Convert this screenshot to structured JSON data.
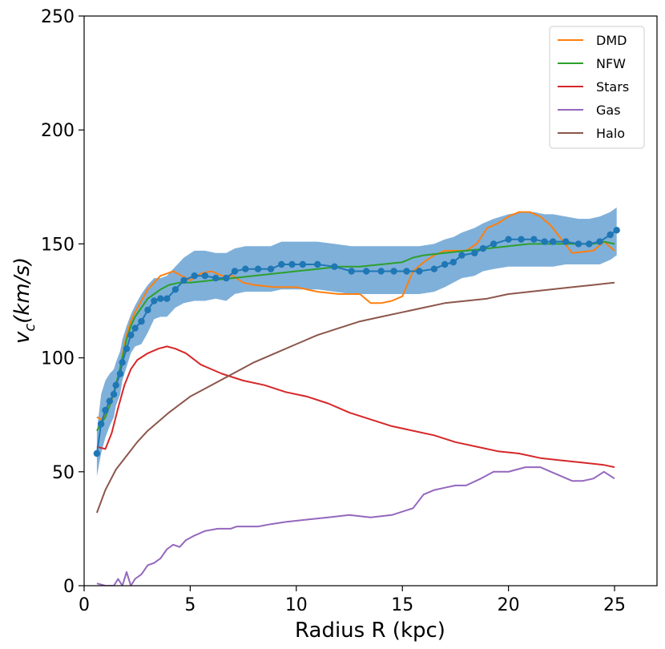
{
  "chart_data": {
    "type": "line",
    "xlabel": "Radius R (kpc)",
    "ylabel": {
      "base": "v",
      "sub": "c",
      "rest": "(km/s)"
    },
    "xlim": [
      0,
      27
    ],
    "ylim": [
      0,
      250
    ],
    "xticks": [
      0,
      5,
      10,
      15,
      20,
      25
    ],
    "yticks": [
      0,
      50,
      100,
      150,
      200,
      250
    ],
    "grid": false,
    "legend_position": "top-right",
    "series": [
      {
        "name": "DMD",
        "color": "#ff7f0e",
        "x": [
          0.6,
          0.8,
          1.0,
          1.2,
          1.4,
          1.6,
          1.8,
          2.0,
          2.2,
          2.4,
          2.7,
          3.0,
          3.3,
          3.6,
          3.9,
          4.2,
          4.6,
          5.0,
          5.5,
          6.0,
          6.5,
          7.0,
          7.5,
          8.0,
          9.0,
          10.0,
          11.0,
          12.0,
          13.0,
          13.5,
          14.0,
          14.5,
          15.0,
          15.5,
          16.0,
          16.5,
          17.0,
          17.5,
          18.0,
          18.5,
          19.0,
          19.5,
          20.0,
          20.5,
          21.0,
          21.5,
          22.0,
          23.0,
          24.0,
          24.5,
          25.0
        ],
        "y": [
          74,
          73,
          75,
          79,
          84,
          91,
          101,
          110,
          116,
          120,
          125,
          130,
          133,
          136,
          137,
          138,
          136,
          134,
          137,
          138,
          136,
          136,
          133,
          132,
          131,
          131,
          129,
          128,
          128,
          124,
          124,
          125,
          127,
          138,
          142,
          145,
          147,
          147,
          147,
          150,
          157,
          159,
          162,
          164,
          164,
          162,
          158,
          146,
          147,
          151,
          147
        ]
      },
      {
        "name": "NFW",
        "color": "#2ca02c",
        "x": [
          0.6,
          0.8,
          1.0,
          1.2,
          1.4,
          1.6,
          1.8,
          2.0,
          2.2,
          2.4,
          2.7,
          3.0,
          3.3,
          3.6,
          4.0,
          4.5,
          5.0,
          6.0,
          7.0,
          8.0,
          9.0,
          10.0,
          11.0,
          12.0,
          13.0,
          14.0,
          15.0,
          15.5,
          16.0,
          17.0,
          18.0,
          19.0,
          20.0,
          21.0,
          22.0,
          23.0,
          24.0,
          24.5,
          25.0
        ],
        "y": [
          68,
          71,
          74,
          79,
          85,
          92,
          100,
          108,
          114,
          118,
          122,
          126,
          128,
          130,
          132,
          133,
          133,
          134,
          135,
          136,
          137,
          138,
          139,
          140,
          140,
          141,
          142,
          144,
          145,
          146,
          147,
          148,
          149,
          150,
          150,
          150,
          150,
          151,
          150
        ]
      },
      {
        "name": "Stars",
        "color": "#d62728",
        "x": [
          0.6,
          1.0,
          1.3,
          1.6,
          1.9,
          2.2,
          2.5,
          3.0,
          3.5,
          3.9,
          4.3,
          4.8,
          5.5,
          6.5,
          7.5,
          8.5,
          9.5,
          10.5,
          11.5,
          12.5,
          13.5,
          14.5,
          15.5,
          16.5,
          17.5,
          18.5,
          19.5,
          20.5,
          21.5,
          22.5,
          23.5,
          24.5,
          25.0
        ],
        "y": [
          61,
          60,
          67,
          78,
          88,
          95,
          99,
          102,
          104,
          105,
          104,
          102,
          97,
          93,
          90,
          88,
          85,
          83,
          80,
          76,
          73,
          70,
          68,
          66,
          63,
          61,
          59,
          58,
          56,
          55,
          54,
          53,
          52
        ]
      },
      {
        "name": "Gas",
        "color": "#9467bd",
        "x": [
          0.6,
          1.0,
          1.4,
          1.6,
          1.8,
          2.0,
          2.2,
          2.4,
          2.7,
          3.0,
          3.3,
          3.6,
          3.9,
          4.2,
          4.5,
          4.8,
          5.2,
          5.7,
          6.3,
          6.9,
          7.2,
          7.6,
          8.2,
          8.8,
          9.5,
          10.5,
          11.5,
          12.5,
          13.5,
          14.5,
          15.5,
          16.0,
          16.5,
          17.0,
          17.5,
          18.0,
          18.7,
          19.3,
          20.0,
          20.8,
          21.5,
          22.0,
          23.0,
          23.5,
          24.0,
          24.5,
          25.0
        ],
        "y": [
          1,
          0,
          0,
          3,
          0,
          6,
          0,
          3,
          5,
          9,
          10,
          12,
          16,
          18,
          17,
          20,
          22,
          24,
          25,
          25,
          26,
          26,
          26,
          27,
          28,
          29,
          30,
          31,
          30,
          31,
          34,
          40,
          42,
          43,
          44,
          44,
          47,
          50,
          50,
          52,
          52,
          50,
          46,
          46,
          47,
          50,
          47
        ]
      },
      {
        "name": "Halo",
        "color": "#8c564b",
        "x": [
          0.6,
          1.0,
          1.5,
          2.0,
          2.5,
          3.0,
          4.0,
          5.0,
          6.0,
          7.0,
          8.0,
          9.0,
          10.0,
          11.0,
          12.0,
          13.0,
          14.0,
          15.0,
          16.0,
          17.0,
          18.0,
          19.0,
          20.0,
          21.0,
          22.0,
          23.0,
          24.0,
          25.0
        ],
        "y": [
          32,
          42,
          51,
          57,
          63,
          68,
          76,
          83,
          88,
          93,
          98,
          102,
          106,
          110,
          113,
          116,
          118,
          120,
          122,
          124,
          125,
          126,
          128,
          129,
          130,
          131,
          132,
          133
        ]
      }
    ],
    "observed": {
      "color": "#1f77b4",
      "band_color": "#7fb0da",
      "x": [
        0.6,
        0.8,
        1.0,
        1.2,
        1.4,
        1.5,
        1.7,
        1.8,
        2.0,
        2.2,
        2.4,
        2.7,
        3.0,
        3.3,
        3.6,
        3.9,
        4.3,
        4.7,
        5.2,
        5.7,
        6.2,
        6.7,
        7.1,
        7.6,
        8.2,
        8.8,
        9.3,
        9.8,
        10.3,
        11.0,
        11.8,
        12.6,
        13.3,
        14.0,
        14.6,
        15.2,
        15.8,
        16.5,
        17.0,
        17.4,
        17.8,
        18.4,
        18.8,
        19.3,
        20.0,
        20.6,
        21.2,
        21.7,
        22.1,
        22.7,
        23.3,
        23.8,
        24.3,
        24.8,
        25.1
      ],
      "y": [
        58,
        71,
        77,
        81,
        84,
        88,
        93,
        98,
        104,
        110,
        113,
        116,
        121,
        125,
        126,
        126,
        130,
        134,
        136,
        136,
        135,
        135,
        138,
        139,
        139,
        139,
        141,
        141,
        141,
        141,
        140,
        138,
        138,
        138,
        138,
        138,
        138,
        139,
        141,
        142,
        145,
        146,
        148,
        150,
        152,
        152,
        152,
        151,
        151,
        151,
        150,
        150,
        151,
        154,
        156
      ],
      "band_lower": [
        48,
        58,
        65,
        70,
        74,
        79,
        84,
        90,
        96,
        102,
        105,
        106,
        111,
        117,
        118,
        118,
        122,
        124,
        125,
        125,
        126,
        125,
        128,
        129,
        129,
        129,
        130,
        130,
        130,
        130,
        129,
        128,
        128,
        128,
        128,
        128,
        128,
        129,
        131,
        133,
        135,
        136,
        138,
        139,
        140,
        140,
        140,
        140,
        140,
        141,
        141,
        141,
        141,
        143,
        145
      ],
      "band_upper": [
        68,
        84,
        90,
        93,
        95,
        98,
        103,
        108,
        114,
        119,
        123,
        128,
        132,
        135,
        135,
        136,
        140,
        144,
        147,
        147,
        146,
        146,
        148,
        149,
        149,
        149,
        151,
        151,
        151,
        151,
        150,
        149,
        149,
        149,
        149,
        149,
        149,
        150,
        152,
        153,
        155,
        157,
        159,
        161,
        163,
        164,
        164,
        163,
        163,
        162,
        161,
        161,
        162,
        164,
        166
      ]
    }
  }
}
